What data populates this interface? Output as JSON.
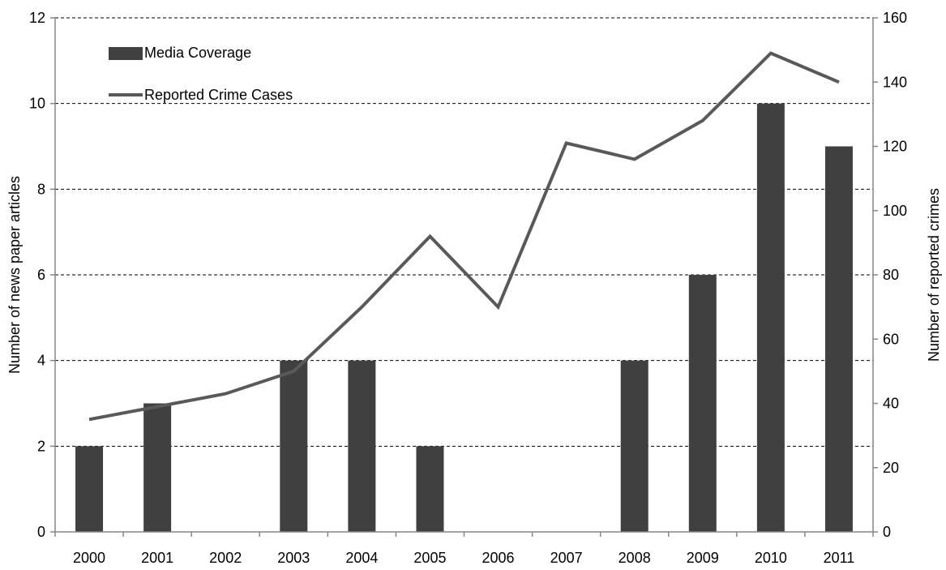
{
  "chart_data": {
    "type": "bar",
    "categories": [
      "2000",
      "2001",
      "2002",
      "2003",
      "2004",
      "2005",
      "2006",
      "2007",
      "2008",
      "2009",
      "2010",
      "2011"
    ],
    "series": [
      {
        "name": "Media Coverage",
        "type": "bar",
        "axis": "left",
        "values": [
          2,
          3,
          0,
          4,
          4,
          2,
          0,
          0,
          4,
          6,
          10,
          9
        ],
        "color": "#404040"
      },
      {
        "name": "Reported Crime Cases",
        "type": "line",
        "axis": "right",
        "values": [
          35,
          39,
          43,
          50,
          70,
          92,
          70,
          121,
          116,
          128,
          149,
          140
        ],
        "color": "#595959"
      }
    ],
    "title": "",
    "xlabel": "",
    "ylabel": "Number of news paper articles",
    "y2label": "Number of reported crimes",
    "ylim": [
      0,
      12
    ],
    "yticks": [
      "0",
      "2",
      "4",
      "6",
      "8",
      "10",
      "12"
    ],
    "y2lim": [
      0,
      160
    ],
    "y2ticks": [
      "0",
      "20",
      "40",
      "60",
      "80",
      "100",
      "120",
      "140",
      "160"
    ],
    "grid": "horizontal dashed",
    "legend": "top-left"
  }
}
